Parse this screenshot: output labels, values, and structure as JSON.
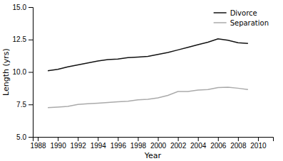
{
  "chart_data": {
    "type": "line",
    "xlabel": "Year",
    "ylabel": "Length (yrs)",
    "x": [
      1989,
      1990,
      1991,
      1992,
      1993,
      1994,
      1995,
      1996,
      1997,
      1998,
      1999,
      2000,
      2001,
      2002,
      2003,
      2004,
      2005,
      2006,
      2007,
      2008,
      2009
    ],
    "series": [
      {
        "name": "Divorce",
        "color": "#111111",
        "values": [
          10.1,
          10.2,
          10.4,
          10.55,
          10.7,
          10.85,
          10.95,
          11.0,
          11.1,
          11.15,
          11.2,
          11.35,
          11.5,
          11.7,
          11.9,
          12.1,
          12.3,
          12.55,
          12.45,
          12.25,
          12.2
        ]
      },
      {
        "name": "Separation",
        "color": "#aaaaaa",
        "values": [
          7.25,
          7.3,
          7.35,
          7.5,
          7.55,
          7.6,
          7.65,
          7.7,
          7.75,
          7.85,
          7.9,
          8.0,
          8.2,
          8.5,
          8.5,
          8.6,
          8.65,
          8.8,
          8.82,
          8.75,
          8.65
        ]
      }
    ],
    "xlim": [
      1987.5,
      2011.5
    ],
    "xticks": [
      1988,
      1990,
      1992,
      1994,
      1996,
      1998,
      2000,
      2002,
      2004,
      2006,
      2008,
      2010
    ],
    "ylim": [
      5.0,
      15.0
    ],
    "yticks": [
      {
        "value": 5.0,
        "label": "5.0"
      },
      7.5,
      {
        "value": 10.0,
        "label": "10.0"
      },
      12.5,
      {
        "value": 15.0,
        "label": "15.0"
      }
    ],
    "legend": "upper right",
    "grid": false
  }
}
